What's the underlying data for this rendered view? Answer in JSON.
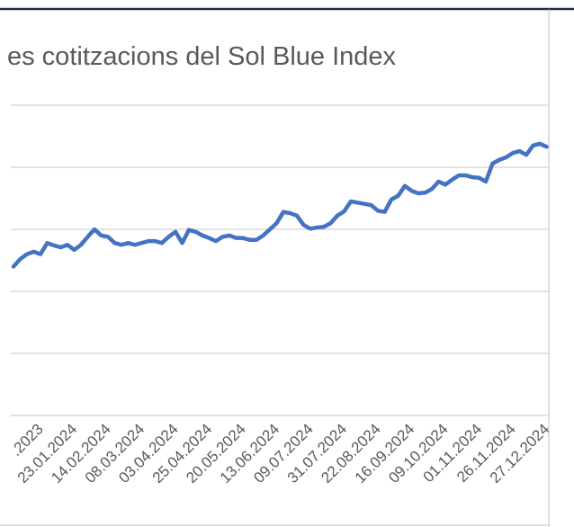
{
  "chart_data": {
    "type": "line",
    "title": "es cotitzacions del Sol Blue Index",
    "categories": [
      null,
      null,
      null,
      null,
      ".2023",
      null,
      null,
      null,
      null,
      "23.01.2024",
      null,
      null,
      null,
      null,
      "14.02.2024",
      null,
      null,
      null,
      null,
      "08.03.2024",
      null,
      null,
      null,
      null,
      "03.04.2024",
      null,
      null,
      null,
      null,
      "25.04.2024",
      null,
      null,
      null,
      null,
      "20.05.2024",
      null,
      null,
      null,
      null,
      "13.06.2024",
      null,
      null,
      null,
      null,
      "09.07.2024",
      null,
      null,
      null,
      null,
      "31.07.2024",
      null,
      null,
      null,
      null,
      "22.08.2024",
      null,
      null,
      null,
      null,
      "16.09.2024",
      null,
      null,
      null,
      null,
      "09.10.2024",
      null,
      null,
      null,
      null,
      "01.11.2024",
      null,
      null,
      null,
      null,
      "26.11.2024",
      null,
      null,
      null,
      null,
      "27.12.2024"
    ],
    "series": [
      {
        "color": "#4472c4",
        "values": [
          2.4,
          2.52,
          2.6,
          2.64,
          2.6,
          2.78,
          2.74,
          2.71,
          2.75,
          2.67,
          2.75,
          2.88,
          3.0,
          2.9,
          2.88,
          2.78,
          2.75,
          2.78,
          2.75,
          2.78,
          2.81,
          2.81,
          2.78,
          2.88,
          2.96,
          2.78,
          2.99,
          2.96,
          2.9,
          2.86,
          2.81,
          2.88,
          2.9,
          2.86,
          2.86,
          2.83,
          2.83,
          2.9,
          3.0,
          3.1,
          3.28,
          3.26,
          3.22,
          3.07,
          3.01,
          3.03,
          3.04,
          3.1,
          3.22,
          3.29,
          3.45,
          3.43,
          3.41,
          3.39,
          3.3,
          3.28,
          3.48,
          3.54,
          3.7,
          3.62,
          3.58,
          3.59,
          3.65,
          3.77,
          3.72,
          3.8,
          3.87,
          3.87,
          3.84,
          3.83,
          3.77,
          4.06,
          4.12,
          4.16,
          4.23,
          4.26,
          4.2,
          4.35,
          4.38,
          4.33
        ]
      }
    ],
    "ylim": [
      0,
      5
    ],
    "yticks": [
      0,
      1,
      2,
      3,
      4,
      5
    ],
    "grid": true
  }
}
